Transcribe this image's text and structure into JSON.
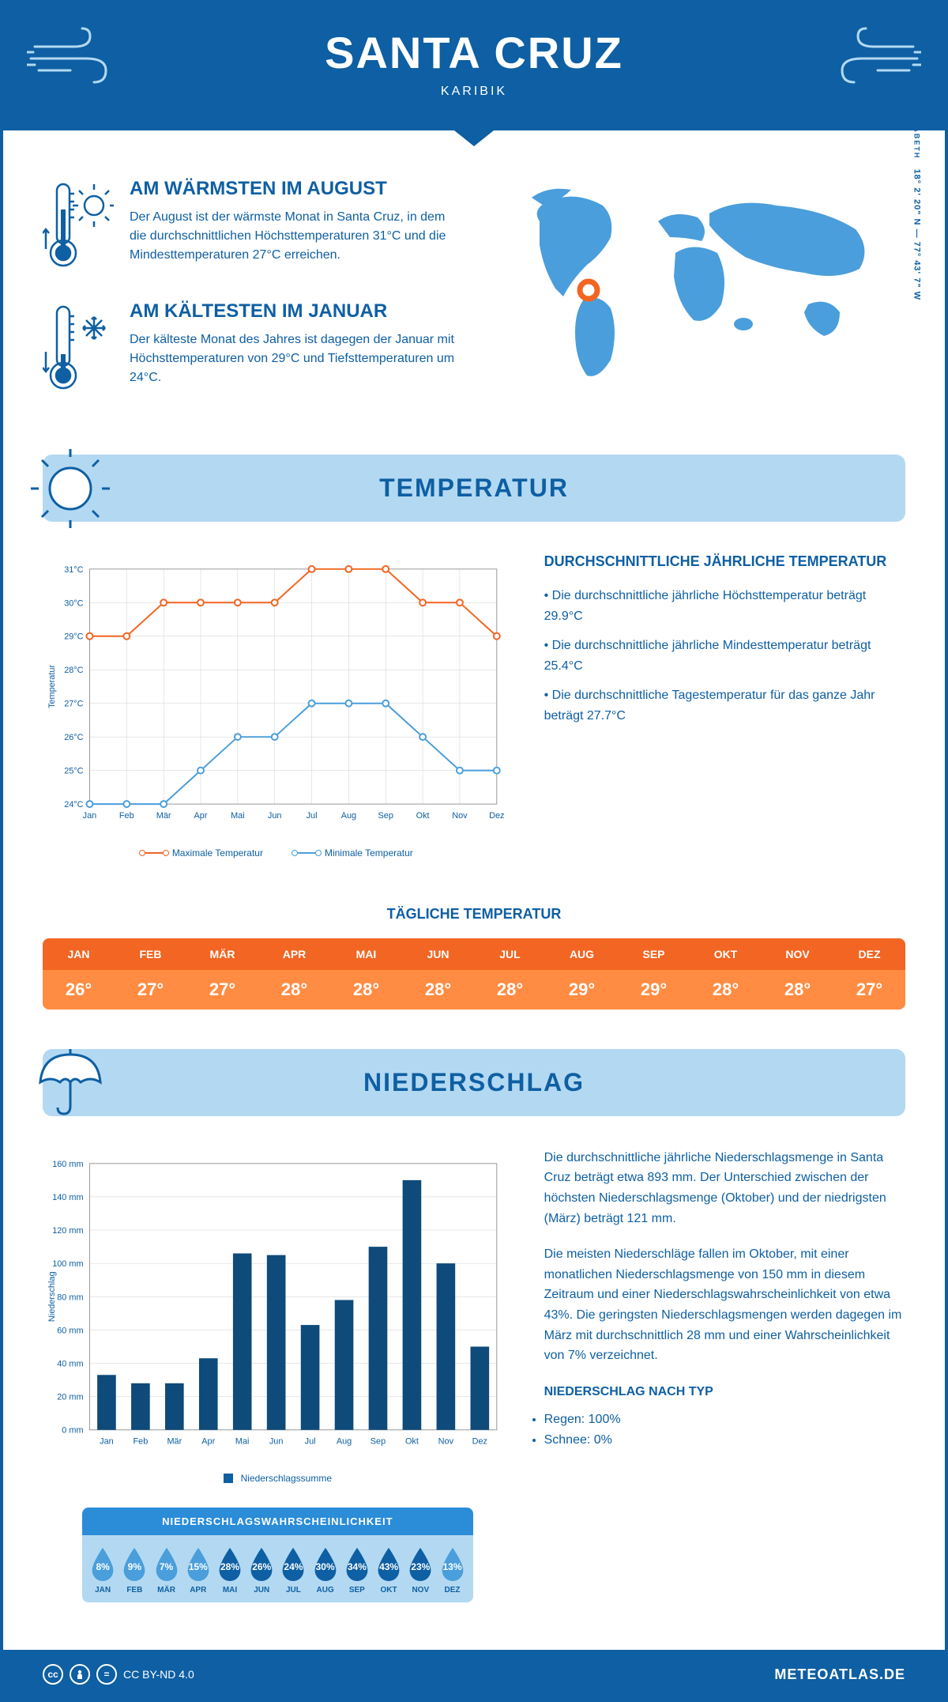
{
  "header": {
    "title": "SANTA CRUZ",
    "subtitle": "KARIBIK"
  },
  "coords": {
    "lat": "18° 2' 20\" N",
    "sep": "—",
    "lon": "77° 43' 7\" W",
    "region": "SAINT ELIZABETH"
  },
  "facts": {
    "warm": {
      "title": "AM WÄRMSTEN IM AUGUST",
      "text": "Der August ist der wärmste Monat in Santa Cruz, in dem die durchschnittlichen Höchsttemperaturen 31°C und die Mindesttemperaturen 27°C erreichen."
    },
    "cold": {
      "title": "AM KÄLTESTEN IM JANUAR",
      "text": "Der kälteste Monat des Jahres ist dagegen der Januar mit Höchsttemperaturen von 29°C und Tiefsttemperaturen um 24°C."
    }
  },
  "sections": {
    "temp": "TEMPERATUR",
    "precip": "NIEDERSCHLAG"
  },
  "temp_chart": {
    "type": "line",
    "months": [
      "Jan",
      "Feb",
      "Mär",
      "Apr",
      "Mai",
      "Jun",
      "Jul",
      "Aug",
      "Sep",
      "Okt",
      "Nov",
      "Dez"
    ],
    "max_series": [
      29,
      29,
      30,
      30,
      30,
      30,
      31,
      31,
      31,
      30,
      30,
      29
    ],
    "min_series": [
      24,
      24,
      24,
      25,
      26,
      26,
      27,
      27,
      27,
      26,
      25,
      25
    ],
    "ylim": [
      24,
      31
    ],
    "ytick_step": 1,
    "y_suffix": "°C",
    "y_title": "Temperatur",
    "colors": {
      "max": "#f26522",
      "min": "#4a9edb",
      "grid": "#d0d0d0",
      "text": "#0e5fa3",
      "bound": "#999999"
    },
    "legend": {
      "max": "Maximale Temperatur",
      "min": "Minimale Temperatur"
    },
    "marker": "circle-open",
    "line_width": 2
  },
  "temp_info": {
    "title": "DURCHSCHNITTLICHE JÄHRLICHE TEMPERATUR",
    "items": [
      "Die durchschnittliche jährliche Höchsttemperatur beträgt 29.9°C",
      "Die durchschnittliche jährliche Mindesttemperatur beträgt 25.4°C",
      "Die durchschnittliche Tagestemperatur für das ganze Jahr beträgt 27.7°C"
    ]
  },
  "daily_temp": {
    "title": "TÄGLICHE TEMPERATUR",
    "months": [
      "JAN",
      "FEB",
      "MÄR",
      "APR",
      "MAI",
      "JUN",
      "JUL",
      "AUG",
      "SEP",
      "OKT",
      "NOV",
      "DEZ"
    ],
    "values": [
      "26°",
      "27°",
      "27°",
      "28°",
      "28°",
      "28°",
      "28°",
      "29°",
      "29°",
      "28°",
      "28°",
      "27°"
    ],
    "head_color": "#f26522",
    "body_color": "#ff8c42"
  },
  "precip_chart": {
    "type": "bar",
    "months": [
      "Jan",
      "Feb",
      "Mär",
      "Apr",
      "Mai",
      "Jun",
      "Jul",
      "Aug",
      "Sep",
      "Okt",
      "Nov",
      "Dez"
    ],
    "values": [
      33,
      28,
      28,
      43,
      106,
      105,
      63,
      78,
      110,
      150,
      100,
      50
    ],
    "ylim": [
      0,
      160
    ],
    "ytick_step": 20,
    "y_suffix": " mm",
    "y_title": "Niederschlag",
    "bar_color": "#0e4a7a",
    "grid_color": "#d0d0d0",
    "text_color": "#0e5fa3",
    "legend": "Niederschlagssumme",
    "bar_width": 0.55
  },
  "precip_text": {
    "p1": "Die durchschnittliche jährliche Niederschlagsmenge in Santa Cruz beträgt etwa 893 mm. Der Unterschied zwischen der höchsten Niederschlagsmenge (Oktober) und der niedrigsten (März) beträgt 121 mm.",
    "p2": "Die meisten Niederschläge fallen im Oktober, mit einer monatlichen Niederschlagsmenge von 150 mm in diesem Zeitraum und einer Niederschlagswahrscheinlichkeit von etwa 43%. Die geringsten Niederschlagsmengen werden dagegen im März mit durchschnittlich 28 mm und einer Wahrscheinlichkeit von 7% verzeichnet.",
    "type_title": "NIEDERSCHLAG NACH TYP",
    "types": [
      "Regen: 100%",
      "Schnee: 0%"
    ]
  },
  "probability": {
    "title": "NIEDERSCHLAGSWAHRSCHEINLICHKEIT",
    "months": [
      "JAN",
      "FEB",
      "MÄR",
      "APR",
      "MAI",
      "JUN",
      "JUL",
      "AUG",
      "SEP",
      "OKT",
      "NOV",
      "DEZ"
    ],
    "values": [
      "8%",
      "9%",
      "7%",
      "15%",
      "28%",
      "26%",
      "24%",
      "30%",
      "34%",
      "43%",
      "23%",
      "13%"
    ],
    "colors": [
      "#4a9edb",
      "#4a9edb",
      "#4a9edb",
      "#4a9edb",
      "#0e5fa3",
      "#0e5fa3",
      "#0e5fa3",
      "#0e5fa3",
      "#0e5fa3",
      "#0e5fa3",
      "#0e5fa3",
      "#4a9edb"
    ],
    "header_bg": "#2b8cd8",
    "row_bg": "#b3d9f2"
  },
  "footer": {
    "license": "CC BY-ND 4.0",
    "site": "METEOATLAS.DE"
  }
}
